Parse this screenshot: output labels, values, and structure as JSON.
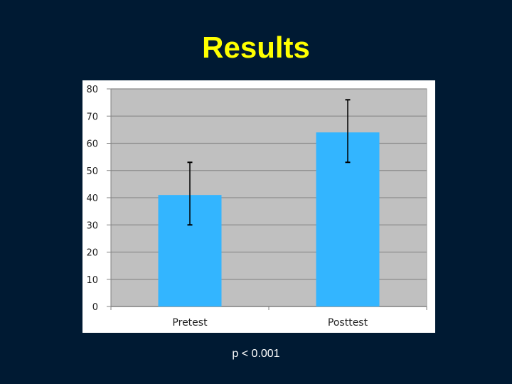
{
  "slide": {
    "title": "Results",
    "footnote": "p < 0.001"
  },
  "colors": {
    "background": "#001a33",
    "title": "#ffff00",
    "bar": "#33b5ff",
    "plot_area": "#c0c0c0",
    "gridline": "#8c8c8c",
    "error_bar": "#000000"
  },
  "chart_data": {
    "type": "bar",
    "categories": [
      "Pretest",
      "Posttest"
    ],
    "values": [
      41,
      64
    ],
    "error_low": [
      30,
      53
    ],
    "error_high": [
      53,
      76
    ],
    "ylim": [
      0,
      80
    ],
    "yticks": [
      0,
      10,
      20,
      30,
      40,
      50,
      60,
      70,
      80
    ],
    "grid": true,
    "legend": false
  }
}
